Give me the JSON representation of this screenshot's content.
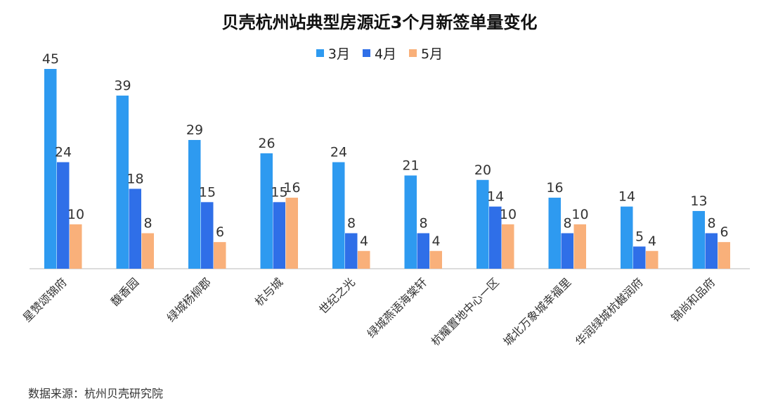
{
  "chart_data": {
    "type": "bar",
    "title": "贝壳杭州站典型房源近3个月新签单量变化",
    "categories": [
      "星赞颂锦府",
      "馥香园",
      "绿城杨柳郡",
      "杭与城",
      "世纪之光",
      "绿城燕语海棠轩",
      "杭耀置地中心一区",
      "城北万象城幸福里",
      "华润绿城杭樾润府",
      "锦尚和品府"
    ],
    "series": [
      {
        "name": "3月",
        "color": "#2e9af0",
        "values": [
          45,
          39,
          29,
          26,
          24,
          21,
          20,
          16,
          14,
          13
        ]
      },
      {
        "name": "4月",
        "color": "#2f6fe8",
        "values": [
          24,
          18,
          15,
          15,
          8,
          8,
          14,
          8,
          5,
          8
        ]
      },
      {
        "name": "5月",
        "color": "#f9b07a",
        "values": [
          10,
          8,
          6,
          16,
          4,
          4,
          10,
          10,
          4,
          6
        ]
      }
    ],
    "xlabel": "",
    "ylabel": "",
    "ylim": [
      0,
      48
    ],
    "grid": false,
    "legend": "top-center"
  },
  "footer": {
    "source": "数据来源：杭州贝壳研究院"
  }
}
